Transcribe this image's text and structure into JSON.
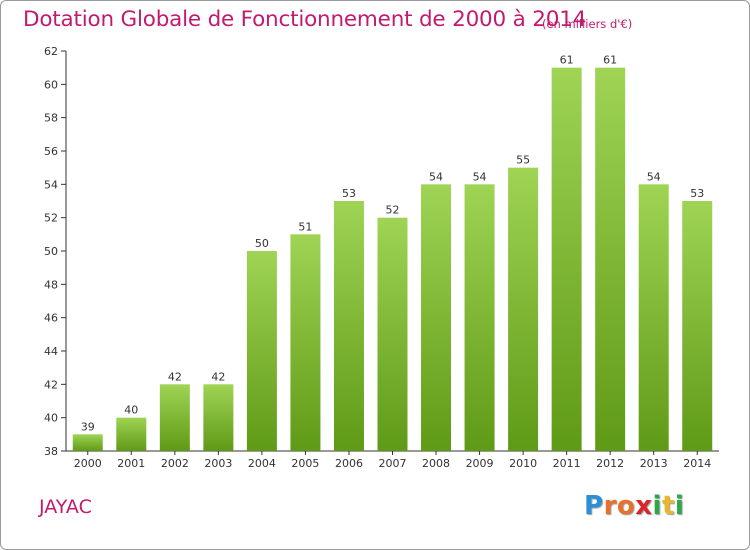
{
  "chart_data": {
    "type": "bar",
    "title": "Dotation Globale de Fonctionnement de 2000 à 2014",
    "subtitle": "(en milliers d'€)",
    "categories": [
      "2000",
      "2001",
      "2002",
      "2003",
      "2004",
      "2005",
      "2006",
      "2007",
      "2008",
      "2009",
      "2010",
      "2011",
      "2012",
      "2013",
      "2014"
    ],
    "values": [
      39,
      40,
      42,
      42,
      50,
      51,
      53,
      52,
      54,
      54,
      55,
      61,
      61,
      54,
      53
    ],
    "ylim": [
      38,
      62
    ],
    "yticks": [
      38,
      40,
      42,
      44,
      46,
      48,
      50,
      52,
      54,
      56,
      58,
      60,
      62
    ],
    "xlabel": "",
    "ylabel": "",
    "grid": false,
    "bar_color": "#7dbb2a"
  },
  "commune": "JAYAC",
  "logo": {
    "letters": [
      {
        "ch": "P",
        "color": "#2a8fd6"
      },
      {
        "ch": "r",
        "color": "#e8702a"
      },
      {
        "ch": "o",
        "color": "#e8702a"
      },
      {
        "ch": "x",
        "color": "#d9262b"
      },
      {
        "ch": "i",
        "color": "#2aa84a"
      },
      {
        "ch": "t",
        "color": "#e8b82a"
      },
      {
        "ch": "i",
        "color": "#2aa84a"
      }
    ]
  },
  "colors": {
    "accent": "#c21b6e",
    "bar_top": "#9fd454",
    "bar_bottom": "#5f9a16"
  }
}
